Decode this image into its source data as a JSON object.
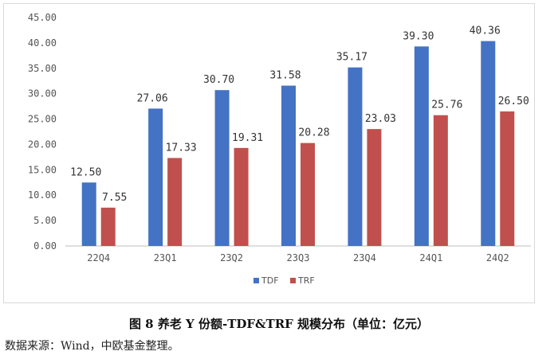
{
  "chart_data": {
    "type": "bar",
    "categories": [
      "22Q4",
      "23Q1",
      "23Q2",
      "23Q3",
      "23Q4",
      "24Q1",
      "24Q2"
    ],
    "series": [
      {
        "name": "TDF",
        "values": [
          12.5,
          27.06,
          30.7,
          31.58,
          35.17,
          39.3,
          40.36
        ],
        "color": "#4472c4"
      },
      {
        "name": "TRF",
        "values": [
          7.55,
          17.33,
          19.31,
          20.28,
          23.03,
          25.76,
          26.5
        ],
        "color": "#c0504d"
      }
    ],
    "ylim": [
      0,
      45
    ],
    "yticks": [
      "0.00",
      "5.00",
      "10.00",
      "15.00",
      "20.00",
      "25.00",
      "30.00",
      "35.00",
      "40.00",
      "45.00"
    ],
    "legend_position": "bottom",
    "grid": false
  },
  "caption": "图 8  养老 Y 份额-TDF&TRF 规模分布（单位：亿元）",
  "source": "数据来源：Wind，中欧基金整理。"
}
